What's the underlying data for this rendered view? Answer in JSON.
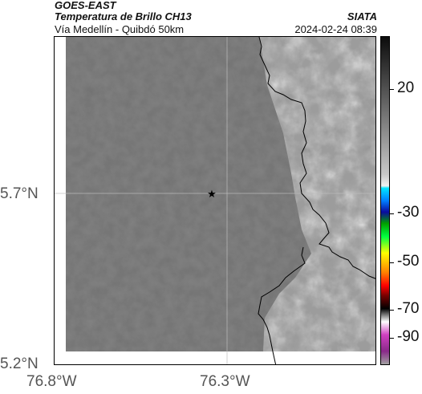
{
  "header": {
    "title_line1": "GOES-EAST",
    "title_line2": "Temperatura de Brillo CH13",
    "subtitle": "Vía Medellín - Quibdó 50km",
    "brand": "SIATA",
    "timestamp": "2024-02-24 08:39"
  },
  "map": {
    "lat_ticks": [
      "5.7°N",
      "5.2°N"
    ],
    "lon_ticks": [
      "76.8°W",
      "76.3°W"
    ],
    "marker_icon": "star-icon",
    "colors": {
      "background_field": "#727272",
      "coastline": "#000000",
      "gridline": "#bdbdbd"
    }
  },
  "colorbar": {
    "ticks": [
      "20",
      "-30",
      "-50",
      "-70",
      "-90"
    ],
    "colors": [
      "#0c0c0c",
      "#9a9a9a",
      "#f2f2f2",
      "#00e5ff",
      "#0a0aa0",
      "#00d000",
      "#ffff00",
      "#ff0000",
      "#000000",
      "#ffffff",
      "#d040c0",
      "#a0a0a0"
    ]
  }
}
